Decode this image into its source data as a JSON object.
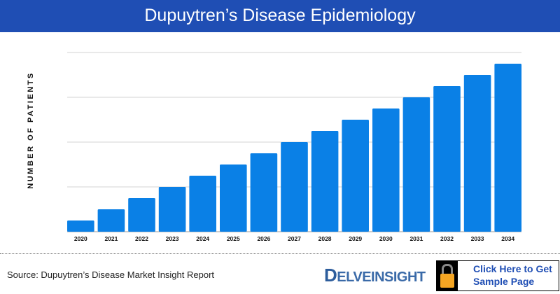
{
  "header": {
    "title": "Dupuytren’s Disease Epidemiology"
  },
  "chart_data": {
    "type": "bar",
    "title": "Dupuytren’s Disease Epidemiology",
    "xlabel": "",
    "ylabel": "NUMBER OF PATIENTS",
    "categories": [
      "2020",
      "2021",
      "2022",
      "2023",
      "2024",
      "2025",
      "2026",
      "2027",
      "2028",
      "2029",
      "2030",
      "2031",
      "2032",
      "2033",
      "2034"
    ],
    "values": [
      1,
      2,
      3,
      4,
      5,
      6,
      7,
      8,
      9,
      10,
      11,
      12,
      13,
      14,
      15
    ],
    "ylim": [
      0,
      16
    ],
    "y_ticks_shown": false,
    "grid": true,
    "bar_color": "#0a80e6"
  },
  "footer": {
    "source": "Source: Dupuytren’s Disease Market Insight Report",
    "logo_text": "DELVEINSIGHT",
    "cta_line1": "Click Here to Get",
    "cta_line2": "Sample Page"
  },
  "colors": {
    "header": "#1f4eb4",
    "bar": "#0a80e6",
    "lock": "#f5a623"
  }
}
